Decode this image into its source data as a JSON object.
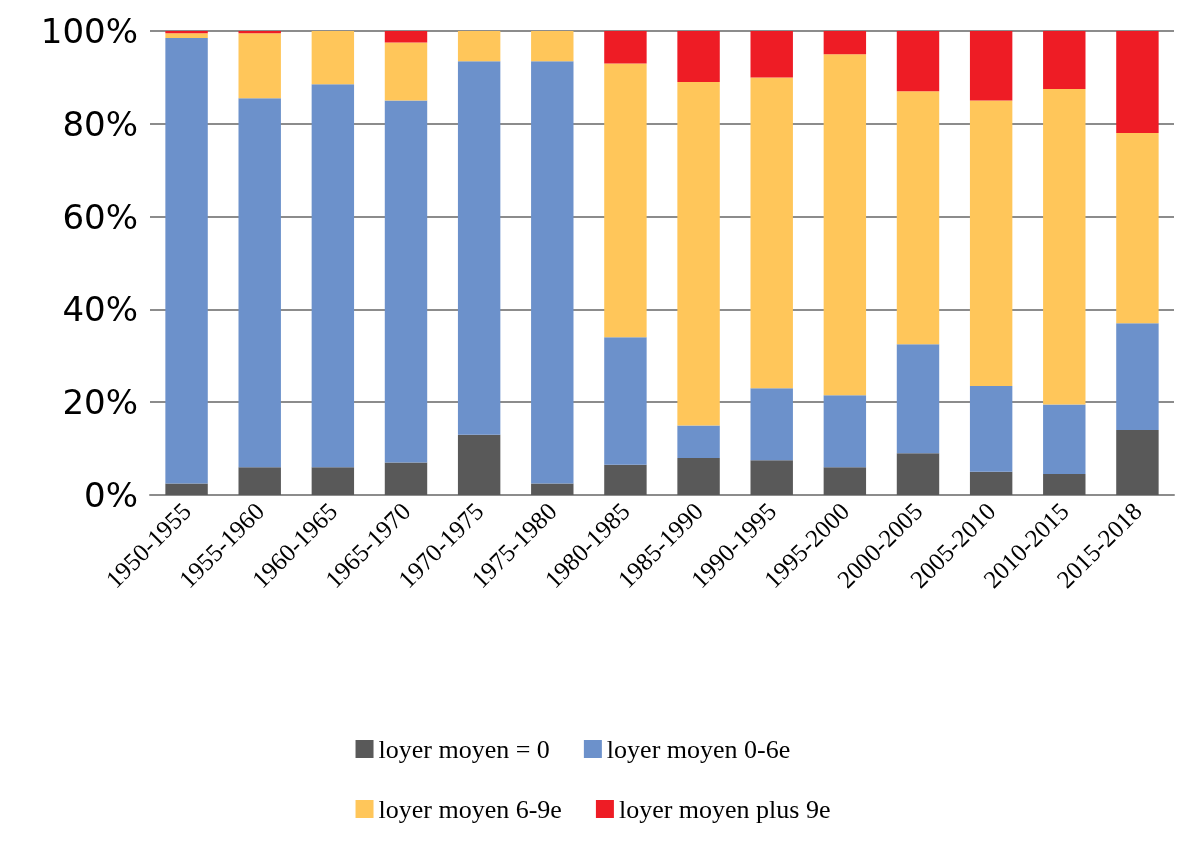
{
  "chart_data": {
    "type": "bar",
    "stacked": true,
    "categories": [
      "1950-1955",
      "1955-1960",
      "1960-1965",
      "1965-1970",
      "1970-1975",
      "1975-1980",
      "1980-1985",
      "1985-1990",
      "1990-1995",
      "1995-2000",
      "2000-2005",
      "2005-2010",
      "2010-2015",
      "2015-2018"
    ],
    "series": [
      {
        "name": "loyer moyen = 0",
        "color": "#595959",
        "values": [
          2.5,
          6,
          6,
          7,
          13,
          2.5,
          6.5,
          8,
          7.5,
          6,
          9,
          5,
          4.5,
          14
        ]
      },
      {
        "name": "loyer moyen 0-6e",
        "color": "#6c91cb",
        "values": [
          96,
          79.5,
          82.5,
          78,
          80.5,
          91,
          27.5,
          7,
          15.5,
          15.5,
          23.5,
          18.5,
          15,
          23
        ]
      },
      {
        "name": "loyer moyen 6-9e",
        "color": "#ffc65a",
        "values": [
          1,
          14,
          11.5,
          12.5,
          6.5,
          6.5,
          59,
          74,
          67,
          73.5,
          54.5,
          61.5,
          68,
          41
        ]
      },
      {
        "name": "loyer moyen plus 9e",
        "color": "#ee1c25",
        "values": [
          0.5,
          0.5,
          0,
          2.5,
          0,
          0,
          7,
          11,
          10,
          5,
          13,
          15,
          12.5,
          22
        ]
      }
    ],
    "ylim": [
      0,
      100
    ],
    "yticks": [
      {
        "value": 0,
        "label": "0%"
      },
      {
        "value": 20,
        "label": "20%"
      },
      {
        "value": 40,
        "label": "40%"
      },
      {
        "value": 60,
        "label": "60%"
      },
      {
        "value": 80,
        "label": "80%"
      },
      {
        "value": 100,
        "label": "100%"
      }
    ],
    "grid": "y",
    "legend": "bottom"
  }
}
